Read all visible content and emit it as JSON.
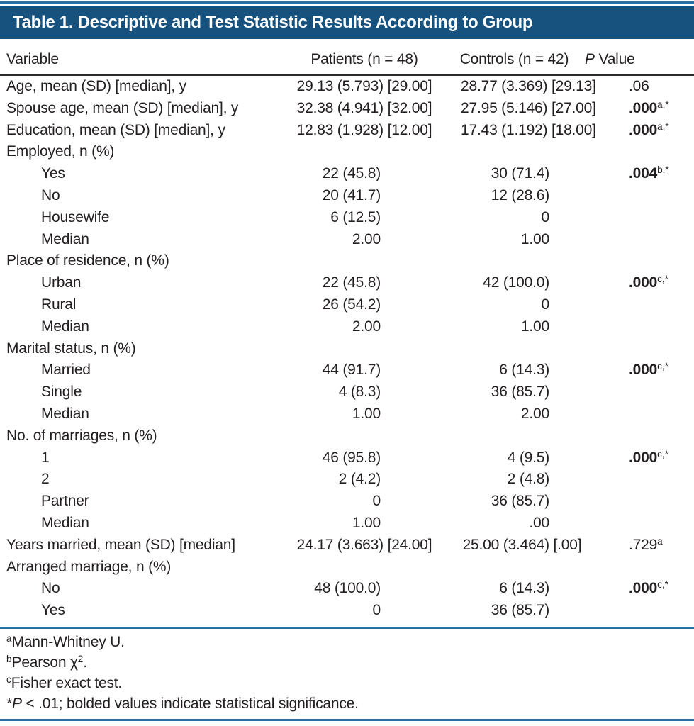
{
  "colors": {
    "title_bar_bg": "#17517D",
    "title_text": "#FFFFFF",
    "rule_blue": "#2B70A5",
    "rule_dark": "#2B2A29",
    "body_text": "#231F20"
  },
  "table": {
    "title": "Table 1. Descriptive and Test Statistic Results According to Group",
    "header": {
      "variable": "Variable",
      "patients": "Patients (n = 48)",
      "controls": "Controls (n = 42)",
      "pvalue_italic": "P",
      "pvalue_rest": " Value"
    },
    "rows": [
      {
        "label": "Age, mean (SD) [median], y",
        "indent": 0,
        "type": "mean",
        "patients": "29.13 (5.793) [29.00]",
        "controls": "28.77 (3.369) [29.13]",
        "p": ".06",
        "p_sup": "",
        "p_bold": false
      },
      {
        "label": "Spouse age, mean (SD) [median], y",
        "indent": 0,
        "type": "mean",
        "patients": "32.38 (4.941) [32.00]",
        "controls": "27.95 (5.146) [27.00]",
        "p": ".000",
        "p_sup": "a,*",
        "p_bold": true
      },
      {
        "label": "Education, mean (SD) [median], y",
        "indent": 0,
        "type": "mean",
        "patients": "12.83 (1.928) [12.00]",
        "controls": "17.43 (1.192) [18.00]",
        "p": ".000",
        "p_sup": "a,*",
        "p_bold": true
      },
      {
        "label": "Employed, n (%)",
        "indent": 0,
        "type": "group"
      },
      {
        "label": "Yes",
        "indent": 1,
        "type": "count",
        "patients": "22 (45.8)",
        "controls": "30 (71.4)",
        "p": ".004",
        "p_sup": "b,*",
        "p_bold": true
      },
      {
        "label": "No",
        "indent": 1,
        "type": "count",
        "patients": "20 (41.7)",
        "controls": "12 (28.6)"
      },
      {
        "label": "Housewife",
        "indent": 1,
        "type": "count",
        "patients": "6 (12.5)",
        "controls": "0"
      },
      {
        "label": "Median",
        "indent": 1,
        "type": "median",
        "patients": "2.00",
        "controls": "1.00"
      },
      {
        "label": "Place of residence, n (%)",
        "indent": 0,
        "type": "group"
      },
      {
        "label": "Urban",
        "indent": 1,
        "type": "count",
        "patients": "22 (45.8)",
        "controls": "42 (100.0)",
        "p": ".000",
        "p_sup": "c,*",
        "p_bold": true
      },
      {
        "label": "Rural",
        "indent": 1,
        "type": "count",
        "patients": "26 (54.2)",
        "controls": "0"
      },
      {
        "label": "Median",
        "indent": 1,
        "type": "median",
        "patients": "2.00",
        "controls": "1.00"
      },
      {
        "label": "Marital status, n (%)",
        "indent": 0,
        "type": "group"
      },
      {
        "label": "Married",
        "indent": 1,
        "type": "count",
        "patients": "44 (91.7)",
        "controls": "6 (14.3)",
        "p": ".000",
        "p_sup": "c,*",
        "p_bold": true
      },
      {
        "label": "Single",
        "indent": 1,
        "type": "count",
        "patients": "4 (8.3)",
        "controls": "36 (85.7)"
      },
      {
        "label": "Median",
        "indent": 1,
        "type": "median",
        "patients": "1.00",
        "controls": "2.00"
      },
      {
        "label": "No. of marriages, n (%)",
        "indent": 0,
        "type": "group"
      },
      {
        "label": "1",
        "indent": 1,
        "type": "count",
        "patients": "46 (95.8)",
        "controls": "4 (9.5)",
        "p": ".000",
        "p_sup": "c,*",
        "p_bold": true
      },
      {
        "label": "2",
        "indent": 1,
        "type": "count",
        "patients": "2 (4.2)",
        "controls": "2 (4.8)"
      },
      {
        "label": "Partner",
        "indent": 1,
        "type": "count",
        "patients": "0",
        "controls": "36 (85.7)"
      },
      {
        "label": "Median",
        "indent": 1,
        "type": "median",
        "patients": "1.00",
        "controls": ".00"
      },
      {
        "label": "Years married, mean (SD) [median]",
        "indent": 0,
        "type": "mean",
        "patients": "24.17 (3.663) [24.00]",
        "controls": "25.00 (3.464) [.00]",
        "p": ".729",
        "p_sup": "a",
        "p_bold": false
      },
      {
        "label": "Arranged marriage, n (%)",
        "indent": 0,
        "type": "group"
      },
      {
        "label": "No",
        "indent": 1,
        "type": "count",
        "patients": "48 (100.0)",
        "controls": "6 (14.3)",
        "p": ".000",
        "p_sup": "c,*",
        "p_bold": true
      },
      {
        "label": "Yes",
        "indent": 1,
        "type": "count",
        "patients": "0",
        "controls": "36 (85.7)"
      }
    ],
    "footnotes": [
      {
        "segments": [
          {
            "t": "sup",
            "v": "a"
          },
          {
            "t": "text",
            "v": "Mann-Whitney U."
          }
        ]
      },
      {
        "segments": [
          {
            "t": "sup",
            "v": "b"
          },
          {
            "t": "text",
            "v": "Pearson χ"
          },
          {
            "t": "sup",
            "v": "2"
          },
          {
            "t": "text",
            "v": "."
          }
        ]
      },
      {
        "segments": [
          {
            "t": "sup",
            "v": "c"
          },
          {
            "t": "text",
            "v": "Fisher exact test."
          }
        ]
      },
      {
        "segments": [
          {
            "t": "text",
            "v": "*"
          },
          {
            "t": "i",
            "v": "P"
          },
          {
            "t": "text",
            "v": " < .01; bolded values indicate statistical significance."
          }
        ]
      }
    ]
  }
}
